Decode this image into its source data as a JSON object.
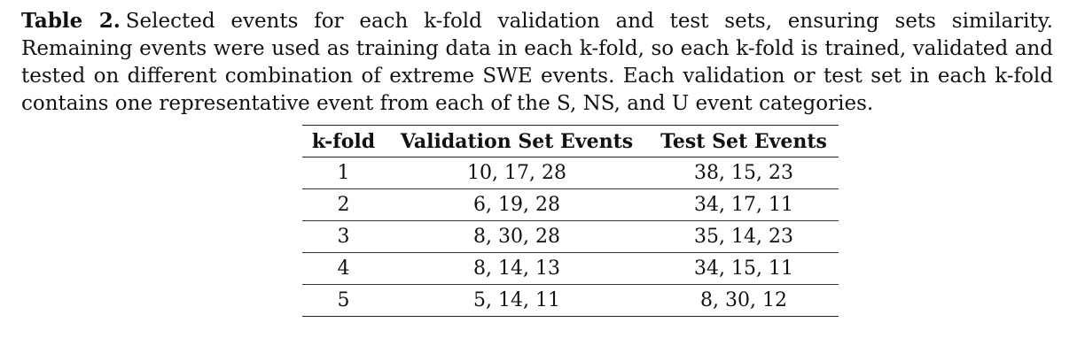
{
  "caption": {
    "label": "Table 2.",
    "text": "Selected events for each k-fold validation and test sets, ensuring sets similarity. Remaining events were used as training data in each k-fold, so each k-fold is trained, validated and tested on different combination of extreme SWE events. Each validation or test set in each k-fold contains one representative event from each of the S, NS, and U event categories."
  },
  "table": {
    "headers": [
      "k-fold",
      "Validation Set Events",
      "Test Set Events"
    ],
    "rows": [
      [
        "1",
        "10, 17, 28",
        "38, 15, 23"
      ],
      [
        "2",
        "6, 19, 28",
        "34, 17, 11"
      ],
      [
        "3",
        "8, 30, 28",
        "35, 14, 23"
      ],
      [
        "4",
        "8, 14, 13",
        "34, 15, 11"
      ],
      [
        "5",
        "5, 14, 11",
        "8, 30, 12"
      ]
    ]
  }
}
